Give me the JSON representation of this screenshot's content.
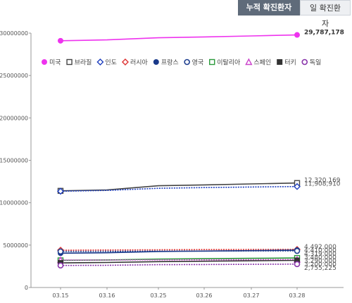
{
  "tabs": [
    {
      "label": "누적 확진환자",
      "active": true
    },
    {
      "label": "일 확진환자",
      "active": false
    }
  ],
  "chart_data": {
    "type": "line",
    "title": "",
    "xlabel": "",
    "ylabel": "",
    "categories": [
      "03.15",
      "03.16",
      "03.25",
      "03.26",
      "03.27",
      "03.28"
    ],
    "ylim": [
      0,
      30000000
    ],
    "yticks": [
      "0",
      "5000000",
      "10000000",
      "15000000",
      "20000000",
      "25000000",
      "30000000"
    ],
    "ytick_values": [
      0,
      5000000,
      10000000,
      15000000,
      20000000,
      25000000,
      30000000
    ],
    "grid": false,
    "legend_position": "top",
    "series": [
      {
        "name": "미국",
        "marker": "circle-filled",
        "color": "#ee33ee",
        "values": [
          29100000,
          29200000,
          29450000,
          29550000,
          29670000,
          29787178
        ],
        "end_label": "29,787,178"
      },
      {
        "name": "브라질",
        "marker": "square-open",
        "color": "#444444",
        "values": [
          11400000,
          11500000,
          12000000,
          12100000,
          12220000,
          12320169
        ],
        "end_label": "12,320,169"
      },
      {
        "name": "인도",
        "marker": "diamond-open",
        "color": "#1f3fbf",
        "values": [
          11350000,
          11450000,
          11700000,
          11780000,
          11850000,
          11908910
        ],
        "end_label": "11,908,910"
      },
      {
        "name": "러시아",
        "marker": "diamond-open",
        "color": "#dd3333",
        "values": [
          4400000,
          4420000,
          4450000,
          4470000,
          4480000,
          4492000
        ],
        "end_label": "4,492,000"
      },
      {
        "name": "프랑스",
        "marker": "circle-filled",
        "color": "#1a3a8a",
        "values": [
          4050000,
          4100000,
          4250000,
          4300000,
          4350000,
          4410000
        ],
        "end_label": "4,410,000"
      },
      {
        "name": "영국",
        "marker": "circle-open",
        "color": "#1f3f8f",
        "values": [
          4250000,
          4260000,
          4290000,
          4300000,
          4310000,
          4319000
        ],
        "end_label": "4,319,000"
      },
      {
        "name": "이탈리아",
        "marker": "square-open",
        "color": "#2a9a3a",
        "values": [
          3200000,
          3250000,
          3350000,
          3400000,
          3440000,
          3480000
        ],
        "end_label": "3,480,000"
      },
      {
        "name": "스페인",
        "marker": "triangle-open",
        "color": "#cc44cc",
        "values": [
          3230000,
          3240000,
          3260000,
          3270000,
          3280000,
          3290000
        ],
        "end_label": "3,290,000"
      },
      {
        "name": "터키",
        "marker": "square-filled",
        "color": "#333333",
        "values": [
          2900000,
          2950000,
          3050000,
          3100000,
          3150000,
          3200000
        ],
        "end_label": "3,200,000"
      },
      {
        "name": "독일",
        "marker": "circle-open",
        "color": "#8833aa",
        "values": [
          2600000,
          2620000,
          2690000,
          2710000,
          2730000,
          2755225
        ],
        "end_label": "2,755,225"
      }
    ]
  }
}
